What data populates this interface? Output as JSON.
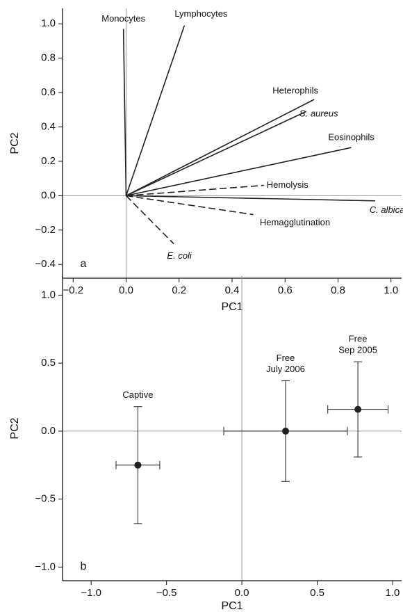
{
  "chart_data": [
    {
      "type": "biplot",
      "panel_label": "a",
      "xlabel": "PC1",
      "ylabel": "PC2",
      "xlim": [
        -0.24,
        1.04
      ],
      "ylim": [
        -0.48,
        1.09
      ],
      "xticks": [
        {
          "value": -0.2,
          "label": "−0.2"
        },
        {
          "value": 0,
          "label": "0.0"
        },
        0.2,
        0.4,
        0.6,
        0.8,
        {
          "value": 1,
          "label": "1.0"
        }
      ],
      "yticks": [
        {
          "value": -0.4,
          "label": "−0.4"
        },
        {
          "value": -0.2,
          "label": "−0.2"
        },
        {
          "value": 0,
          "label": "0.0"
        },
        0.2,
        0.4,
        0.6,
        0.8,
        {
          "value": 1,
          "label": "1.0"
        }
      ],
      "color": "#222222",
      "vectors": [
        {
          "name": "Monocytes",
          "x": -0.01,
          "y": 0.97,
          "dashed": false,
          "italic": false
        },
        {
          "name": "Lymphocytes",
          "x": 0.22,
          "y": 0.99,
          "dashed": false,
          "italic": false
        },
        {
          "name": "Heterophils",
          "x": 0.71,
          "y": 0.56,
          "dashed": false,
          "italic": false
        },
        {
          "name": "S. aureus",
          "x": 0.68,
          "y": 0.49,
          "dashed": false,
          "italic": true
        },
        {
          "name": "Eosinophils",
          "x": 0.85,
          "y": 0.28,
          "dashed": false,
          "italic": false
        },
        {
          "name": "Hemolysis",
          "x": 0.52,
          "y": 0.06,
          "dashed": true,
          "italic": false
        },
        {
          "name": "C. albicans",
          "x": 0.94,
          "y": -0.03,
          "dashed": false,
          "italic": true
        },
        {
          "name": "Hemagglutination",
          "x": 0.48,
          "y": -0.11,
          "dashed": true,
          "italic": false
        },
        {
          "name": "E. coli",
          "x": 0.18,
          "y": -0.28,
          "dashed": true,
          "italic": true
        }
      ]
    },
    {
      "type": "errorbar",
      "panel_label": "b",
      "xlabel": "PC1",
      "ylabel": "PC2",
      "xlim": [
        -1.19,
        1.06
      ],
      "ylim": [
        -1.1,
        1.14
      ],
      "xticks": [
        {
          "value": -1,
          "label": "−1.0"
        },
        {
          "value": -0.5,
          "label": "−0.5"
        },
        {
          "value": 0,
          "label": "0.0"
        },
        0.5,
        {
          "value": 1,
          "label": "1.0"
        }
      ],
      "yticks": [
        {
          "value": -1,
          "label": "−1.0"
        },
        {
          "value": -0.5,
          "label": "−0.5"
        },
        {
          "value": 0,
          "label": "0.0"
        },
        0.5,
        {
          "value": 1,
          "label": "1.0"
        }
      ],
      "color": "#222222",
      "points": [
        {
          "label": [
            "Captive"
          ],
          "x": -0.69,
          "y": -0.25,
          "xerr": 0.145,
          "yerr": 0.43
        },
        {
          "label": [
            "Free",
            "July 2006"
          ],
          "x": 0.29,
          "y": 0.0,
          "xerr": 0.41,
          "yerr": 0.37
        },
        {
          "label": [
            "Free",
            "Sep 2005"
          ],
          "x": 0.77,
          "y": 0.16,
          "xerr": 0.2,
          "yerr": 0.35
        }
      ]
    }
  ]
}
